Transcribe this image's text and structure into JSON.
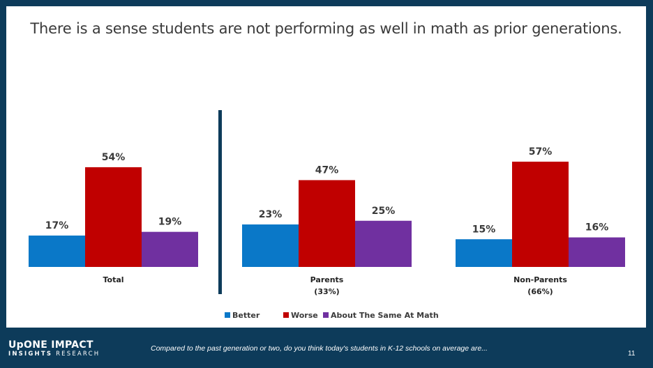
{
  "slide": {
    "title": "There is a sense students are not performing as well in math as prior generations.",
    "page_number": "11"
  },
  "footer": {
    "logo_top_part1": "UpONE",
    "logo_top_part2": "IMPACT",
    "logo_bottom_part1": "INSIGHTS",
    "logo_bottom_part2": "RESEARCH",
    "question": "Compared to the past generation or two, do you think today's students in K-12 schools on average are..."
  },
  "colors": {
    "better": "#0a78c8",
    "worse": "#c00000",
    "same": "#7030a0",
    "background": "#0d3b5a",
    "divider": "#0d3b5a"
  },
  "chart_data": {
    "type": "bar",
    "categories": [
      "Total",
      "Parents",
      "Non-Parents"
    ],
    "category_sublabels": [
      "",
      "(33%)",
      "(66%)"
    ],
    "series": [
      {
        "name": "Better",
        "values": [
          17,
          23,
          15
        ],
        "labels": [
          "17%",
          "23%",
          "15%"
        ]
      },
      {
        "name": "Worse",
        "values": [
          54,
          47,
          57
        ],
        "labels": [
          "54%",
          "47%",
          "57%"
        ]
      },
      {
        "name": "About The Same At Math",
        "values": [
          19,
          25,
          16
        ],
        "labels": [
          "19%",
          "25%",
          "16%"
        ]
      }
    ],
    "ylim": [
      0,
      100
    ],
    "grid": false,
    "legend_position": "bottom-center",
    "divider_after_category": "Total"
  }
}
